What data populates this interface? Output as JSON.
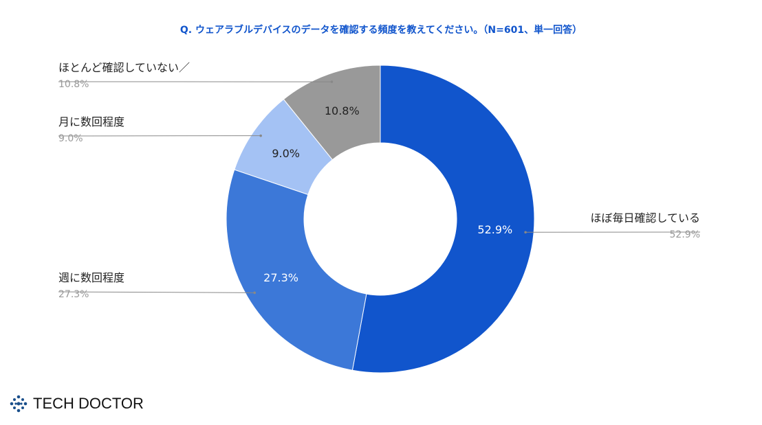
{
  "chart_data": {
    "type": "pie",
    "donut": true,
    "title": "Q. ウェアラブルデバイスのデータを確認する頻度を教えてください。（N=601、単一回答）",
    "categories": [
      "ほぼ毎日確認している",
      "週に数回程度",
      "月に数回程度",
      "ほとんど確認していない／"
    ],
    "values": [
      52.9,
      27.3,
      9.0,
      10.8
    ],
    "labels": [
      "52.9%",
      "27.3%",
      "9.0%",
      "10.8%"
    ],
    "colors": [
      "#1155cc",
      "#3c78d8",
      "#a4c2f4",
      "#999999"
    ],
    "legend": "outside labels with leader lines"
  },
  "logo": {
    "text": "TECH DOCTOR",
    "color": "#1a4f8b"
  }
}
